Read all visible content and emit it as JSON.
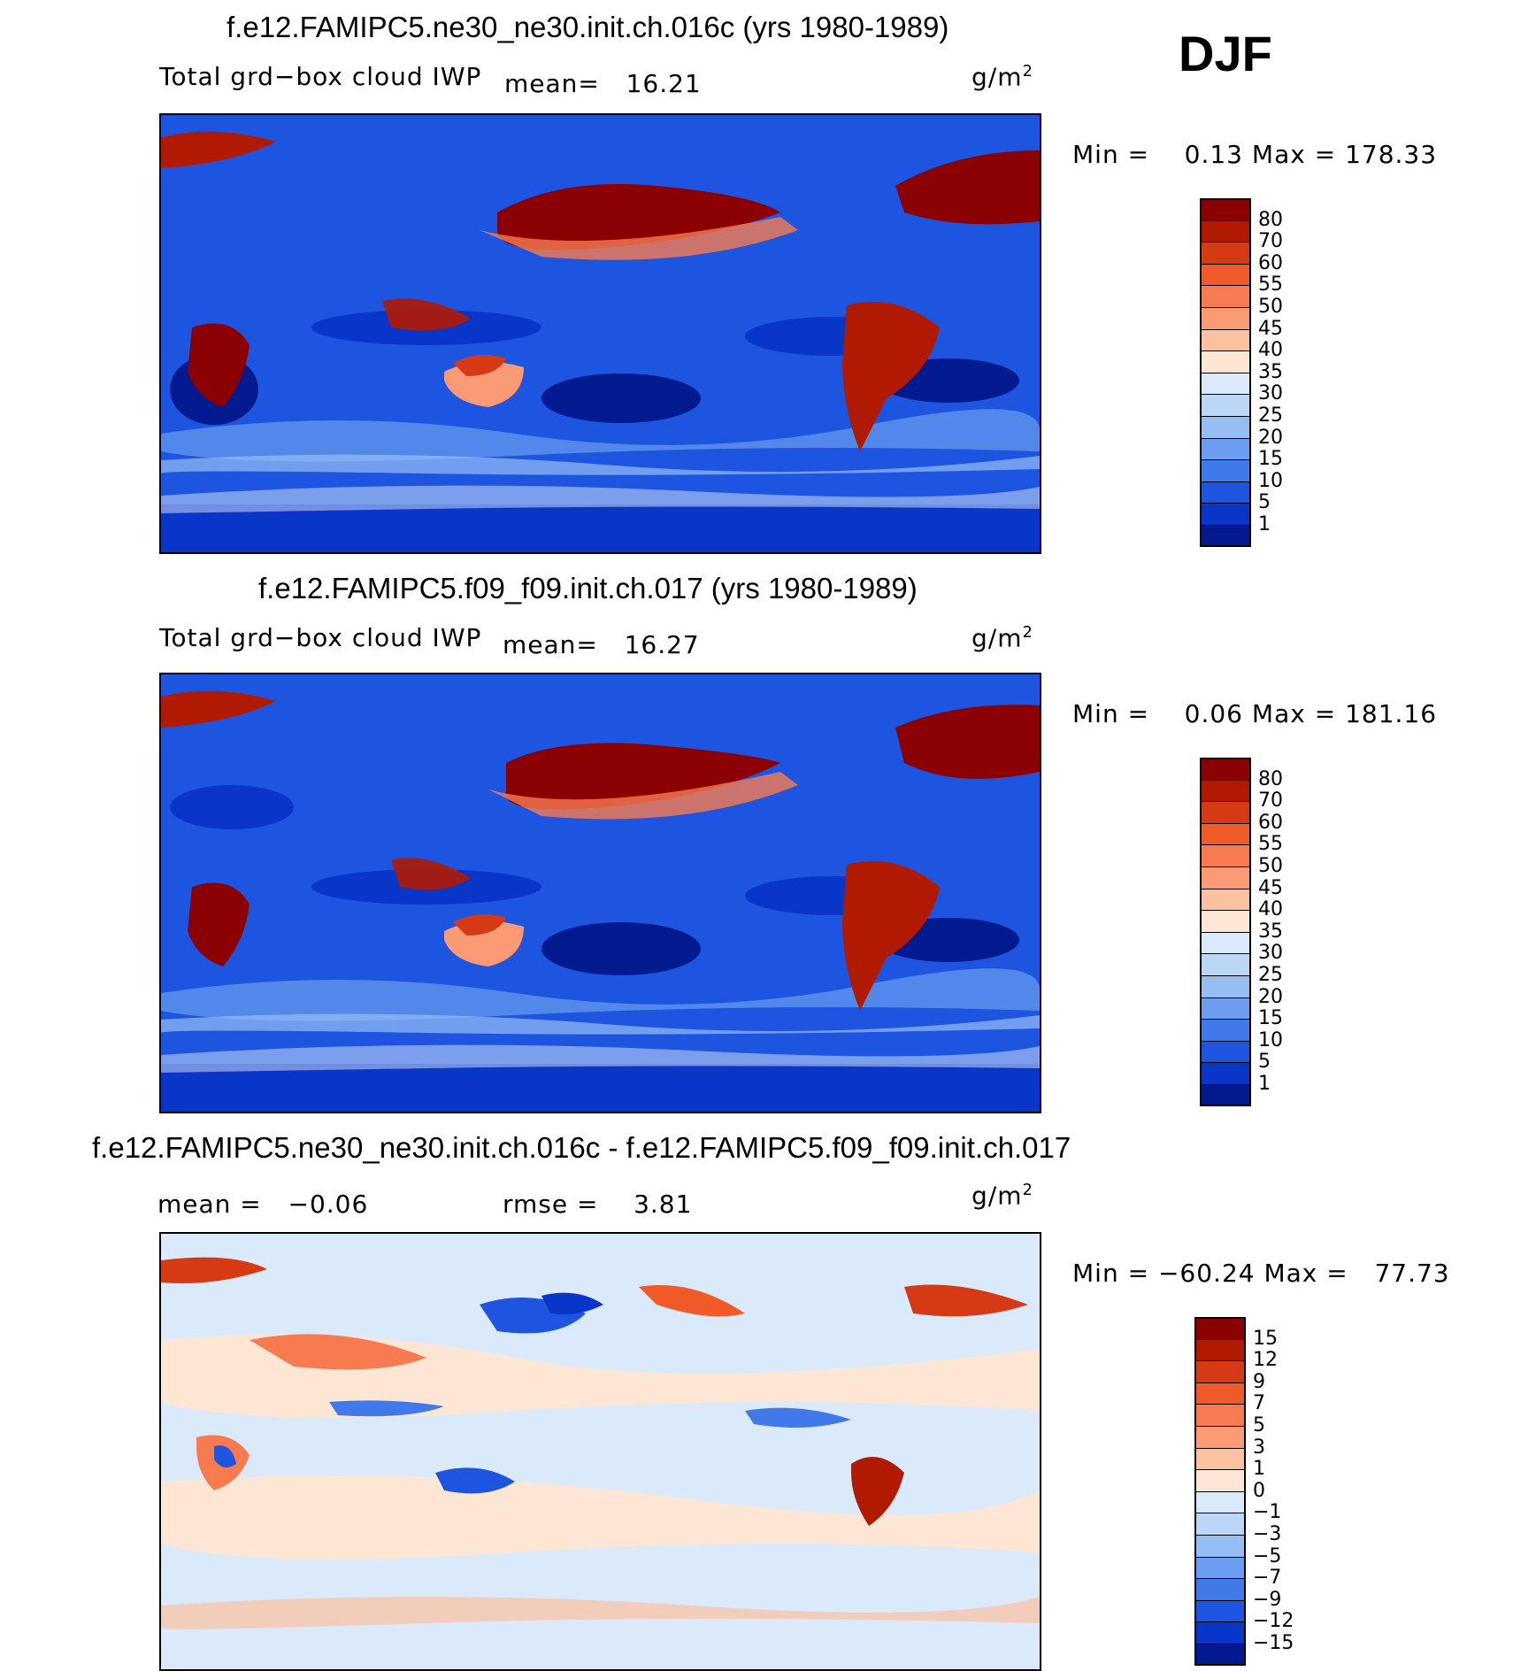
{
  "season": "DJF",
  "panels": [
    {
      "title": "f.e12.FAMIPC5.ne30_ne30.init.ch.016c (yrs 1980-1989)",
      "variable": "Total grd−box cloud IWP",
      "stat_label": "mean=",
      "stat_value": "16.21",
      "units_base": "g/m",
      "units_exp": "2",
      "min_label": "Min =",
      "min_value": "0.13",
      "max_label": "Max =",
      "max_value": "178.33",
      "colorbar": {
        "labels": [
          "80",
          "70",
          "60",
          "55",
          "50",
          "45",
          "40",
          "35",
          "30",
          "25",
          "20",
          "15",
          "10",
          "5",
          "1"
        ],
        "colors": [
          "#8b0000",
          "#b01a00",
          "#d63a14",
          "#f05a28",
          "#f87a50",
          "#fb9b76",
          "#fcc1a0",
          "#fde6d4",
          "#dbeafa",
          "#bcd6f8",
          "#97bdf5",
          "#6b9ef0",
          "#3f79ea",
          "#1d55e0",
          "#0a35c9",
          "#011a8f"
        ]
      }
    },
    {
      "title": "f.e12.FAMIPC5.f09_f09.init.ch.017 (yrs 1980-1989)",
      "variable": "Total grd−box cloud IWP",
      "stat_label": "mean=",
      "stat_value": "16.27",
      "units_base": "g/m",
      "units_exp": "2",
      "min_label": "Min =",
      "min_value": "0.06",
      "max_label": "Max =",
      "max_value": "181.16",
      "colorbar": {
        "labels": [
          "80",
          "70",
          "60",
          "55",
          "50",
          "45",
          "40",
          "35",
          "30",
          "25",
          "20",
          "15",
          "10",
          "5",
          "1"
        ],
        "colors": [
          "#8b0000",
          "#b01a00",
          "#d63a14",
          "#f05a28",
          "#f87a50",
          "#fb9b76",
          "#fcc1a0",
          "#fde6d4",
          "#dbeafa",
          "#bcd6f8",
          "#97bdf5",
          "#6b9ef0",
          "#3f79ea",
          "#1d55e0",
          "#0a35c9",
          "#011a8f"
        ]
      }
    },
    {
      "title": "f.e12.FAMIPC5.ne30_ne30.init.ch.016c - f.e12.FAMIPC5.f09_f09.init.ch.017",
      "mean_label": "mean =",
      "mean_value": "−0.06",
      "rmse_label": "rmse =",
      "rmse_value": "3.81",
      "units_base": "g/m",
      "units_exp": "2",
      "min_label": "Min =",
      "min_value": "−60.24",
      "max_label": "Max =",
      "max_value": "77.73",
      "colorbar": {
        "labels": [
          "15",
          "12",
          "9",
          "7",
          "5",
          "3",
          "1",
          "0",
          "−1",
          "−3",
          "−5",
          "−7",
          "−9",
          "−12",
          "−15"
        ],
        "colors": [
          "#8b0000",
          "#b01a00",
          "#d63a14",
          "#f05a28",
          "#f87a50",
          "#fb9b76",
          "#fcc1a0",
          "#fde6d4",
          "#dbeafa",
          "#bcd6f8",
          "#97bdf5",
          "#6b9ef0",
          "#3f79ea",
          "#1d55e0",
          "#0a35c9",
          "#011a8f"
        ]
      }
    }
  ]
}
